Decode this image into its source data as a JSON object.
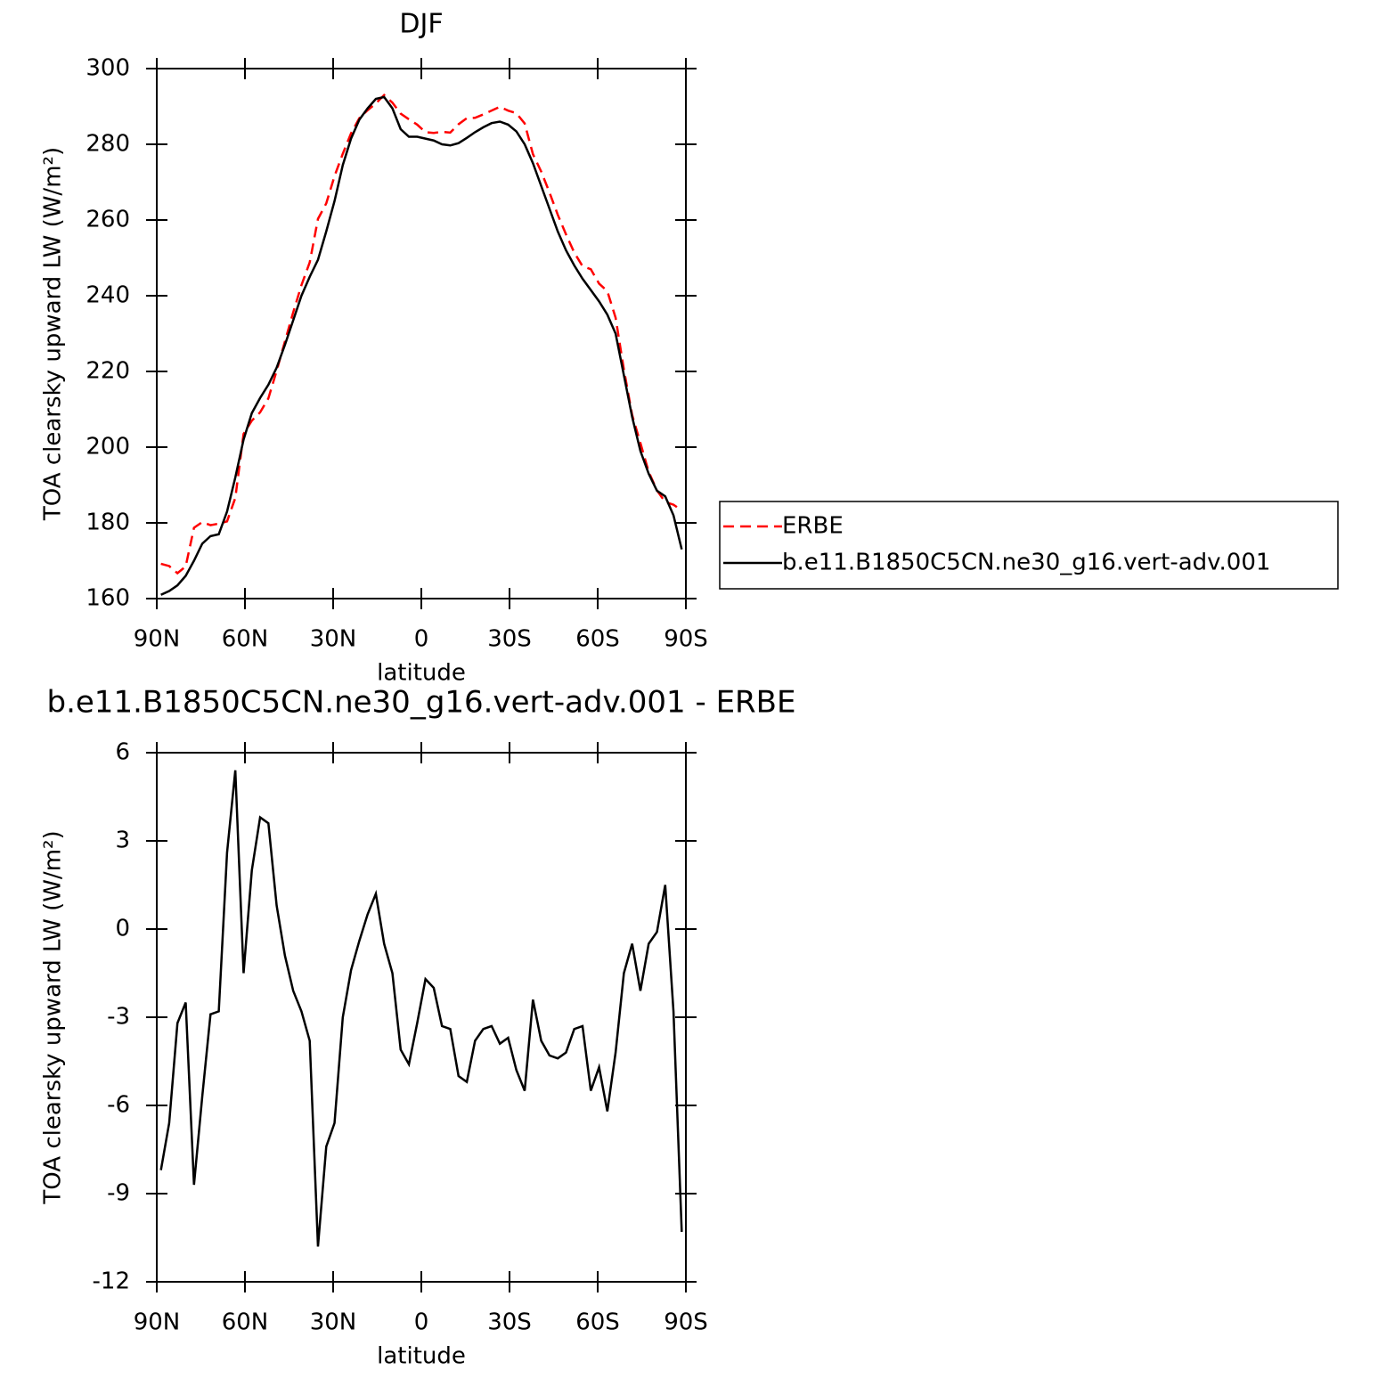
{
  "chart_data": [
    {
      "type": "line",
      "title": "DJF",
      "xlabel": "latitude",
      "ylabel": "TOA clearsky upward LW (W/m²)",
      "x": [
        88.59,
        85.78,
        82.97,
        80.16,
        77.34,
        74.53,
        71.72,
        68.91,
        66.09,
        63.28,
        60.47,
        57.66,
        54.84,
        52.03,
        49.22,
        46.41,
        43.59,
        40.78,
        37.97,
        35.16,
        32.34,
        29.53,
        26.72,
        23.91,
        21.09,
        18.28,
        15.47,
        12.66,
        9.84,
        7.03,
        4.22,
        1.41,
        -1.41,
        -4.22,
        -7.03,
        -9.84,
        -12.66,
        -15.47,
        -18.28,
        -21.09,
        -23.91,
        -26.72,
        -29.53,
        -32.34,
        -35.16,
        -37.97,
        -40.78,
        -43.59,
        -46.41,
        -49.22,
        -52.03,
        -54.84,
        -57.66,
        -60.47,
        -63.28,
        -66.09,
        -68.91,
        -71.72,
        -74.53,
        -77.34,
        -80.16,
        -82.97,
        -85.78,
        -88.59
      ],
      "series": [
        {
          "name": "ERBE",
          "color": "#ff0000",
          "line_style": "dashed",
          "values": [
            169.2,
            168.6,
            166.7,
            168.5,
            178.7,
            180.2,
            179.4,
            179.8,
            180.4,
            186.6,
            203.5,
            207,
            209.2,
            212.9,
            220.2,
            227.9,
            235.6,
            242.8,
            248.8,
            260.3,
            264.4,
            271.6,
            277.5,
            282.9,
            286.9,
            289,
            290.8,
            293,
            291,
            288.1,
            286.6,
            285.2,
            283.2,
            283,
            283.3,
            283.1,
            285.3,
            286.9,
            287,
            287.9,
            288.9,
            289.9,
            288.9,
            288.2,
            285.5,
            277.4,
            272.8,
            267.3,
            261.4,
            256.2,
            251.4,
            247.8,
            247,
            243.2,
            241.2,
            234.2,
            220.5,
            208.5,
            201.1,
            193.5,
            188.6,
            185.5,
            184.8,
            183.3
          ]
        },
        {
          "name": "b.e11.B1850C5CN.ne30_g16.vert-adv.001",
          "color": "#000000",
          "line_style": "solid",
          "values": [
            161,
            162,
            163.5,
            166,
            170,
            174.5,
            176.5,
            177,
            183,
            192,
            202,
            209,
            213,
            216.5,
            221,
            227,
            233.5,
            240,
            245,
            249.5,
            257,
            265,
            274.5,
            281.5,
            286.5,
            289.5,
            292,
            292.5,
            289.5,
            284,
            282,
            282,
            281.5,
            281,
            280,
            279.7,
            280.3,
            281.7,
            283.2,
            284.5,
            285.6,
            286,
            285.2,
            283.4,
            280,
            275,
            269,
            263,
            257,
            252,
            248,
            244.5,
            241.5,
            238.5,
            235,
            230,
            219,
            208,
            199,
            193,
            188.5,
            187,
            182,
            173
          ]
        }
      ],
      "xlim": [
        90,
        -90
      ],
      "xticks": [
        {
          "value": 90,
          "label": "90N"
        },
        {
          "value": 60,
          "label": "60N"
        },
        {
          "value": 30,
          "label": "30N"
        },
        0,
        {
          "value": -30,
          "label": "30S"
        },
        {
          "value": -60,
          "label": "60S"
        },
        {
          "value": -90,
          "label": "90S"
        }
      ],
      "ylim": [
        160,
        300
      ],
      "yticks": [
        160,
        180,
        200,
        220,
        240,
        260,
        280,
        300
      ],
      "legend": "right"
    },
    {
      "type": "line",
      "title": "b.e11.B1850C5CN.ne30_g16.vert-adv.001 - ERBE",
      "xlabel": "latitude",
      "ylabel": "TOA clearsky upward LW (W/m²)",
      "x": [
        88.59,
        85.78,
        82.97,
        80.16,
        77.34,
        74.53,
        71.72,
        68.91,
        66.09,
        63.28,
        60.47,
        57.66,
        54.84,
        52.03,
        49.22,
        46.41,
        43.59,
        40.78,
        37.97,
        35.16,
        32.34,
        29.53,
        26.72,
        23.91,
        21.09,
        18.28,
        15.47,
        12.66,
        9.84,
        7.03,
        4.22,
        1.41,
        -1.41,
        -4.22,
        -7.03,
        -9.84,
        -12.66,
        -15.47,
        -18.28,
        -21.09,
        -23.91,
        -26.72,
        -29.53,
        -32.34,
        -35.16,
        -37.97,
        -40.78,
        -43.59,
        -46.41,
        -49.22,
        -52.03,
        -54.84,
        -57.66,
        -60.47,
        -63.28,
        -66.09,
        -68.91,
        -71.72,
        -74.53,
        -77.34,
        -80.16,
        -82.97,
        -85.78,
        -88.59
      ],
      "series": [
        {
          "color": "#000000",
          "line_style": "solid",
          "values": [
            -8.2,
            -6.6,
            -3.2,
            -2.5,
            -8.7,
            -5.7,
            -2.9,
            -2.8,
            2.6,
            5.4,
            -1.5,
            2,
            3.8,
            3.6,
            0.8,
            -0.9,
            -2.1,
            -2.8,
            -3.8,
            -10.8,
            -7.4,
            -6.6,
            -3,
            -1.4,
            -0.4,
            0.5,
            1.2,
            -0.5,
            -1.5,
            -4.1,
            -4.6,
            -3.2,
            -1.7,
            -2,
            -3.3,
            -3.4,
            -5,
            -5.2,
            -3.8,
            -3.4,
            -3.3,
            -3.9,
            -3.7,
            -4.8,
            -5.5,
            -2.4,
            -3.8,
            -4.3,
            -4.4,
            -4.2,
            -3.4,
            -3.3,
            -5.5,
            -4.7,
            -6.2,
            -4.2,
            -1.5,
            -0.5,
            -2.1,
            -0.5,
            -0.1,
            1.5,
            -2.8,
            -10.3
          ]
        }
      ],
      "xlim": [
        90,
        -90
      ],
      "xticks": [
        {
          "value": 90,
          "label": "90N"
        },
        {
          "value": 60,
          "label": "60N"
        },
        {
          "value": 30,
          "label": "30N"
        },
        0,
        {
          "value": -30,
          "label": "30S"
        },
        {
          "value": -60,
          "label": "60S"
        },
        {
          "value": -90,
          "label": "90S"
        }
      ],
      "ylim": [
        -12,
        6
      ],
      "yticks": [
        -12,
        -9,
        -6,
        -3,
        0,
        3,
        6
      ]
    }
  ]
}
